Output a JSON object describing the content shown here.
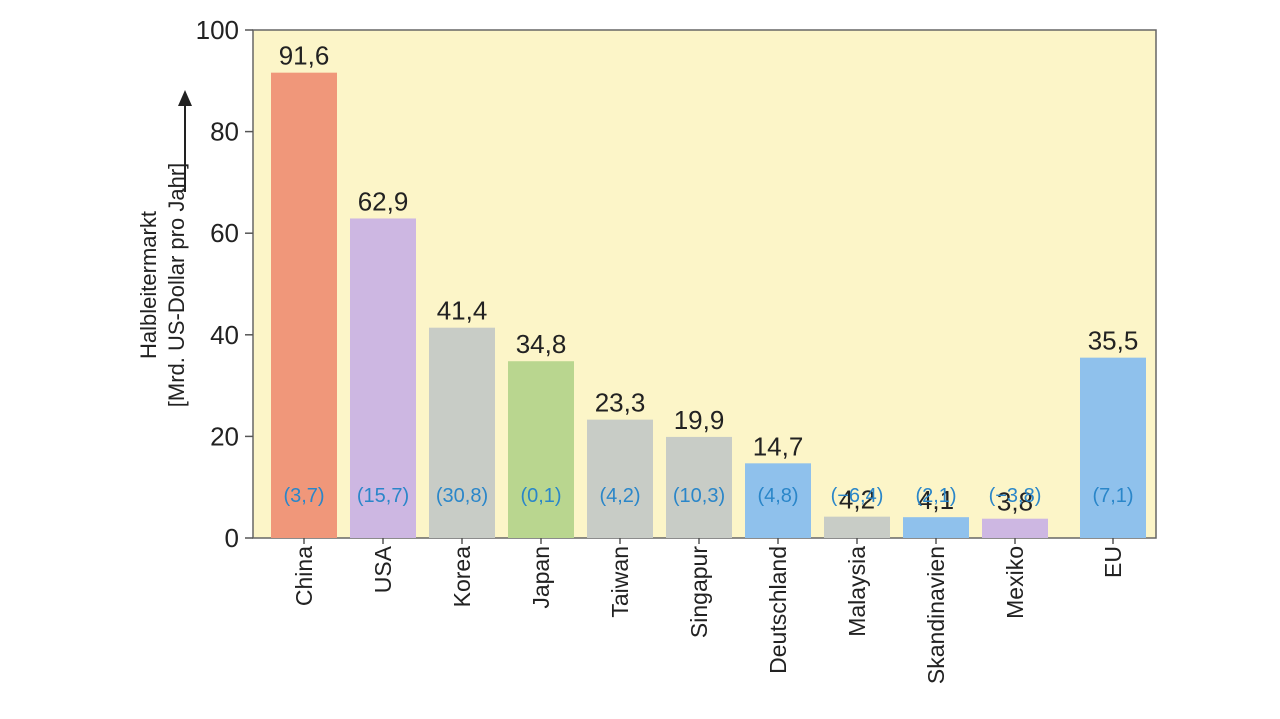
{
  "chart_data": {
    "type": "bar",
    "ylabel_line1": "Halbleitermarkt",
    "ylabel_line2": "[Mrd. US-Dollar pro Jahr]",
    "ylim": [
      0,
      100
    ],
    "yticks": [
      "0",
      "20",
      "40",
      "60",
      "80",
      "100"
    ],
    "ytick_values": [
      0,
      20,
      40,
      60,
      80,
      100
    ],
    "grid": false,
    "background": "#fcf5c8",
    "categories": [
      "China",
      "USA",
      "Korea",
      "Japan",
      "Taiwan",
      "Singapur",
      "Deutschland",
      "Malaysia",
      "Skandinavien",
      "Mexiko",
      "EU"
    ],
    "values": [
      91.6,
      62.9,
      41.4,
      34.8,
      23.3,
      19.9,
      14.7,
      4.2,
      4.1,
      3.8,
      35.5
    ],
    "value_labels": [
      "91,6",
      "62,9",
      "41,4",
      "34,8",
      "23,3",
      "19,9",
      "14,7",
      "4,2",
      "4,1",
      "3,8",
      "35,5"
    ],
    "secondary_labels": [
      "(3,7)",
      "(15,7)",
      "(30,8)",
      "(0,1)",
      "(4,2)",
      "(10,3)",
      "(4,8)",
      "(−6,4)",
      "(2,1)",
      "(−3,8)",
      "(7,1)"
    ],
    "colors": [
      "#f0977a",
      "#cdb7e2",
      "#c8ccc6",
      "#b9d68f",
      "#c8ccc6",
      "#c8ccc6",
      "#8fc1ec",
      "#c8ccc6",
      "#8fc1ec",
      "#cdb7e2",
      "#8fc1ec"
    ],
    "secondary_color": "#2a86c9"
  }
}
